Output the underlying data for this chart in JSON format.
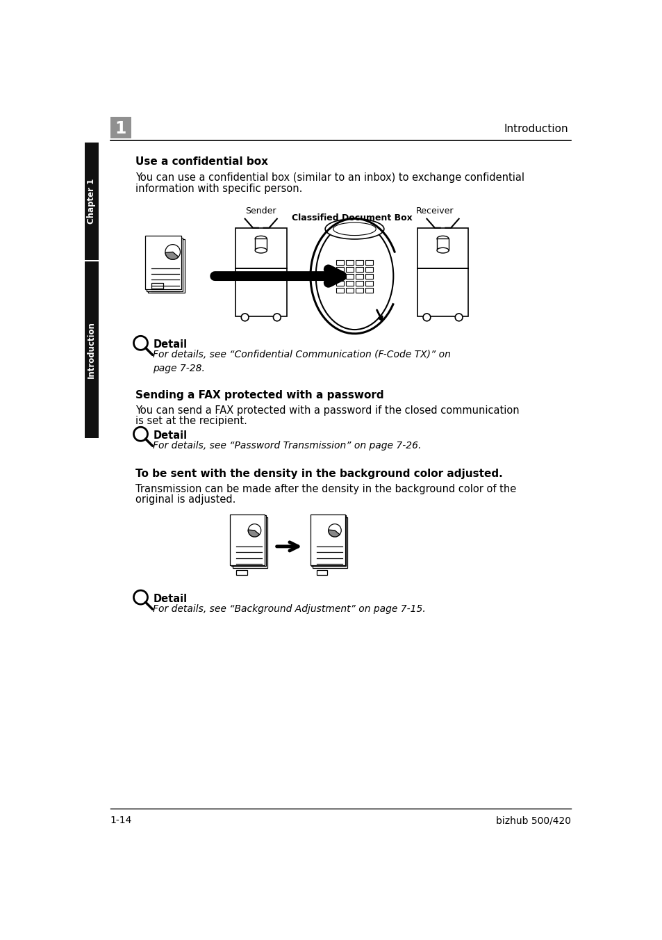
{
  "page_title": "Introduction",
  "chapter_label": "Chapter 1",
  "intro_label": "Introduction",
  "chapter_num": "1",
  "section1_heading": "Use a confidential box",
  "section1_body1": "You can use a confidential box (similar to an inbox) to exchange confidential",
  "section1_body2": "information with specific person.",
  "diagram1_sender": "Sender",
  "diagram1_receiver": "Receiver",
  "diagram1_box": "Classified Document Box",
  "detail_label": "Detail",
  "detail1_text": "For details, see “Confidential Communication (F-Code TX)” on\npage 7-28.",
  "section2_heading": "Sending a FAX protected with a password",
  "section2_body1": "You can send a FAX protected with a password if the closed communication",
  "section2_body2": "is set at the recipient.",
  "detail2_text": "For details, see “Password Transmission” on page 7-26.",
  "section3_heading": "To be sent with the density in the background color adjusted.",
  "section3_body1": "Transmission can be made after the density in the background color of the",
  "section3_body2": "original is adjusted.",
  "detail3_text": "For details, see “Background Adjustment” on page 7-15.",
  "footer_left": "1-14",
  "footer_right": "bizhub 500/420",
  "bg_color": "#ffffff",
  "text_color": "#000000",
  "sidebar_bg": "#111111",
  "header_num_bg": "#909090"
}
